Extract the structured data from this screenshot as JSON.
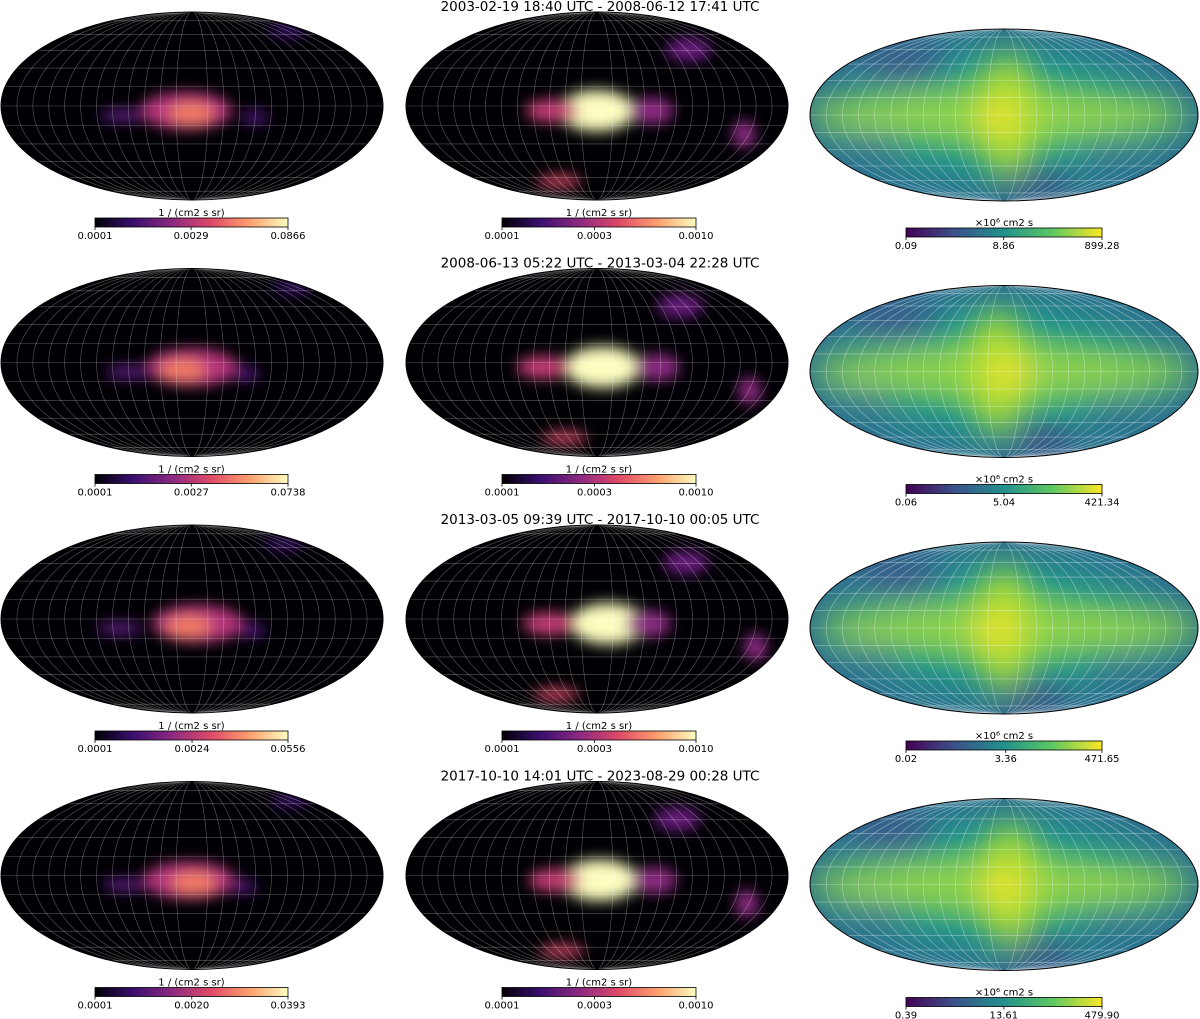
{
  "chart_data": [
    {
      "type": "map",
      "colormap": "magma",
      "log_scale": true,
      "colorbar_label": "1 / (cm2 s sr)",
      "clim": [
        0.0001,
        0.0866
      ],
      "cticks": [
        0.0001,
        0.0029,
        0.0866
      ]
    },
    {
      "type": "map",
      "title": "2003-02-19 18:40 UTC - 2008-06-12 17:41 UTC",
      "colormap": "magma",
      "log_scale": true,
      "colorbar_label": "1 / (cm2 s sr)",
      "clim": [
        0.0001,
        0.001
      ],
      "cticks": [
        0.0001,
        0.0003,
        {
          "value": 0.001,
          "label": "0.0010"
        }
      ]
    },
    {
      "type": "map",
      "colormap": "viridis",
      "log_scale": true,
      "colorbar_label": "×10⁶ cm2 s",
      "clim": [
        0.09,
        899.28
      ],
      "cticks": [
        0.09,
        8.86,
        899.28
      ]
    },
    {
      "type": "map",
      "colormap": "magma",
      "log_scale": true,
      "colorbar_label": "1 / (cm2 s sr)",
      "clim": [
        0.0001,
        0.0738
      ],
      "cticks": [
        0.0001,
        0.0027,
        0.0738
      ]
    },
    {
      "type": "map",
      "title": "2008-06-13 05:22 UTC - 2013-03-04 22:28 UTC",
      "colormap": "magma",
      "log_scale": true,
      "colorbar_label": "1 / (cm2 s sr)",
      "clim": [
        0.0001,
        0.001
      ],
      "cticks": [
        0.0001,
        0.0003,
        {
          "value": 0.001,
          "label": "0.0010"
        }
      ]
    },
    {
      "type": "map",
      "colormap": "viridis",
      "log_scale": true,
      "colorbar_label": "×10⁶ cm2 s",
      "clim": [
        0.06,
        421.34
      ],
      "cticks": [
        0.06,
        5.04,
        421.34
      ]
    },
    {
      "type": "map",
      "colormap": "magma",
      "log_scale": true,
      "colorbar_label": "1 / (cm2 s sr)",
      "clim": [
        0.0001,
        0.0556
      ],
      "cticks": [
        0.0001,
        0.0024,
        0.0556
      ]
    },
    {
      "type": "map",
      "title": "2013-03-05 09:39 UTC - 2017-10-10 00:05 UTC",
      "colormap": "magma",
      "log_scale": true,
      "colorbar_label": "1 / (cm2 s sr)",
      "clim": [
        0.0001,
        0.001
      ],
      "cticks": [
        0.0001,
        0.0003,
        {
          "value": 0.001,
          "label": "0.0010"
        }
      ]
    },
    {
      "type": "map",
      "colormap": "viridis",
      "log_scale": true,
      "colorbar_label": "×10⁶ cm2 s",
      "clim": [
        0.02,
        471.65
      ],
      "cticks": [
        0.02,
        3.36,
        471.65
      ]
    },
    {
      "type": "map",
      "colormap": "magma",
      "log_scale": true,
      "colorbar_label": "1 / (cm2 s sr)",
      "clim": [
        0.0001,
        0.0393
      ],
      "cticks": [
        0.0001,
        {
          "value": 0.002,
          "label": "0.0020"
        },
        0.0393
      ]
    },
    {
      "type": "map",
      "title": "2017-10-10 14:01 UTC - 2023-08-29 00:28 UTC",
      "colormap": "magma",
      "log_scale": true,
      "colorbar_label": "1 / (cm2 s sr)",
      "clim": [
        0.0001,
        0.001
      ],
      "cticks": [
        0.0001,
        0.0003,
        {
          "value": 0.001,
          "label": "0.0010"
        }
      ]
    },
    {
      "type": "map",
      "colormap": "viridis",
      "log_scale": true,
      "colorbar_label": "×10⁶ cm2 s",
      "clim": [
        0.39,
        479.9
      ],
      "cticks": [
        0.39,
        13.61,
        {
          "value": 479.9,
          "label": "479.90"
        }
      ]
    }
  ]
}
